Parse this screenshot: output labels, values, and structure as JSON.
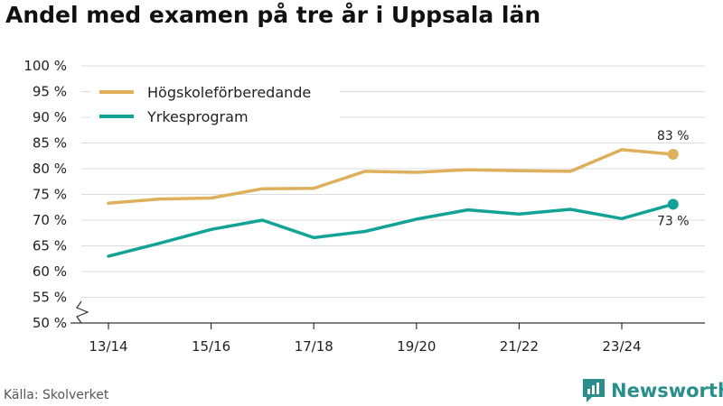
{
  "title": "Andel med examen på tre år i Uppsala län",
  "source": "Källa: Skolverket",
  "brand": "Newsworthy",
  "chart_data": {
    "type": "line",
    "title": "Andel med examen på tre år i Uppsala län",
    "xlabel": "",
    "ylabel": "",
    "ylim": [
      50,
      100
    ],
    "y_ticks": [
      "100 %",
      "95 %",
      "90 %",
      "85 %",
      "80 %",
      "75 %",
      "70 %",
      "65 %",
      "60 %",
      "55 %",
      "50 %"
    ],
    "y_tick_values": [
      100,
      95,
      90,
      85,
      80,
      75,
      70,
      65,
      60,
      55,
      50
    ],
    "x_tick_labels": [
      "13/14",
      "15/16",
      "17/18",
      "19/20",
      "21/22",
      "23/24"
    ],
    "x_tick_indices": [
      0,
      2,
      4,
      6,
      8,
      10
    ],
    "grid": true,
    "legend_position": "top-left",
    "series": [
      {
        "name": "Högskoleförberedande",
        "color": "#deb05c",
        "values": [
          73.3,
          74.1,
          74.3,
          76.1,
          76.2,
          79.5,
          79.3,
          79.8,
          79.6,
          79.5,
          83.7,
          82.8
        ],
        "end_label": "83 %"
      },
      {
        "name": "Yrkesprogram",
        "color": "#13a296",
        "values": [
          63.0,
          65.5,
          68.2,
          70.0,
          66.6,
          67.8,
          70.2,
          72.0,
          71.2,
          72.1,
          70.3,
          73.1
        ],
        "end_label": "73 %"
      }
    ]
  }
}
